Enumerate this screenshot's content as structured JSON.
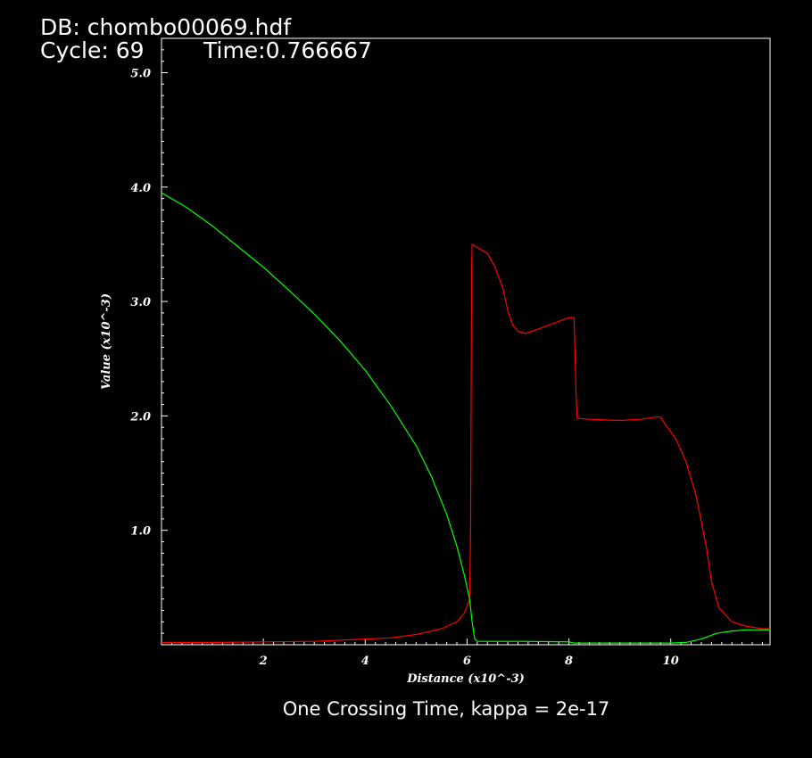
{
  "header": {
    "db_label": "DB: chombo00069.hdf",
    "cycle_label": "Cycle: 69",
    "time_label": "Time:0.766667"
  },
  "caption": "One Crossing Time, kappa = 2e-17",
  "chart_data": {
    "type": "line",
    "xlabel": "Distance (x10^-3)",
    "ylabel": "Value (x10^-3)",
    "xlim": [
      0,
      11.95
    ],
    "ylim": [
      0,
      5.3
    ],
    "x_ticks": [
      2,
      4,
      6,
      8,
      10
    ],
    "x_tick_labels": [
      "2",
      "4",
      "6",
      "8",
      "10"
    ],
    "y_ticks": [
      1,
      2,
      3,
      4,
      5
    ],
    "y_tick_labels": [
      "1.0",
      "2.0",
      "3.0",
      "4.0",
      "5.0"
    ],
    "grid": false,
    "colors": {
      "background": "#000000",
      "axes": "#ffffff",
      "red_series": "#ff0000",
      "green_series": "#00ff00"
    },
    "series": [
      {
        "color": "#ff0000",
        "points": [
          [
            0,
            0.02
          ],
          [
            1,
            0.02
          ],
          [
            2,
            0.025
          ],
          [
            3,
            0.03
          ],
          [
            4,
            0.05
          ],
          [
            4.5,
            0.06
          ],
          [
            5,
            0.09
          ],
          [
            5.5,
            0.14
          ],
          [
            5.8,
            0.2
          ],
          [
            5.95,
            0.28
          ],
          [
            6.05,
            0.4
          ],
          [
            6.07,
            1.0
          ],
          [
            6.09,
            3.3
          ],
          [
            6.1,
            3.5
          ],
          [
            6.25,
            3.46
          ],
          [
            6.4,
            3.42
          ],
          [
            6.55,
            3.3
          ],
          [
            6.7,
            3.12
          ],
          [
            6.8,
            2.92
          ],
          [
            6.9,
            2.79
          ],
          [
            7.0,
            2.74
          ],
          [
            7.15,
            2.72
          ],
          [
            7.4,
            2.76
          ],
          [
            7.7,
            2.81
          ],
          [
            8.0,
            2.86
          ],
          [
            8.1,
            2.86
          ],
          [
            8.14,
            2.2
          ],
          [
            8.16,
            1.98
          ],
          [
            8.4,
            1.97
          ],
          [
            9.0,
            1.96
          ],
          [
            9.4,
            1.97
          ],
          [
            9.7,
            1.99
          ],
          [
            9.8,
            1.99
          ],
          [
            9.9,
            1.92
          ],
          [
            10.1,
            1.8
          ],
          [
            10.3,
            1.6
          ],
          [
            10.5,
            1.3
          ],
          [
            10.7,
            0.85
          ],
          [
            10.8,
            0.55
          ],
          [
            10.95,
            0.32
          ],
          [
            11.2,
            0.2
          ],
          [
            11.5,
            0.16
          ],
          [
            11.8,
            0.14
          ],
          [
            11.95,
            0.14
          ]
        ]
      },
      {
        "color": "#00ff00",
        "points": [
          [
            0,
            3.95
          ],
          [
            0.5,
            3.82
          ],
          [
            1,
            3.66
          ],
          [
            1.5,
            3.48
          ],
          [
            2,
            3.3
          ],
          [
            2.5,
            3.1
          ],
          [
            3,
            2.89
          ],
          [
            3.5,
            2.66
          ],
          [
            4,
            2.4
          ],
          [
            4.5,
            2.09
          ],
          [
            5,
            1.74
          ],
          [
            5.3,
            1.47
          ],
          [
            5.6,
            1.14
          ],
          [
            5.8,
            0.86
          ],
          [
            5.95,
            0.6
          ],
          [
            6.05,
            0.4
          ],
          [
            6.1,
            0.2
          ],
          [
            6.15,
            0.05
          ],
          [
            6.2,
            0.03
          ],
          [
            7.0,
            0.03
          ],
          [
            8.0,
            0.025
          ],
          [
            8.1,
            0.015
          ],
          [
            9.0,
            0.015
          ],
          [
            10.0,
            0.015
          ],
          [
            10.3,
            0.02
          ],
          [
            10.6,
            0.05
          ],
          [
            10.9,
            0.1
          ],
          [
            11.2,
            0.12
          ],
          [
            11.5,
            0.13
          ],
          [
            11.95,
            0.13
          ]
        ]
      }
    ]
  }
}
